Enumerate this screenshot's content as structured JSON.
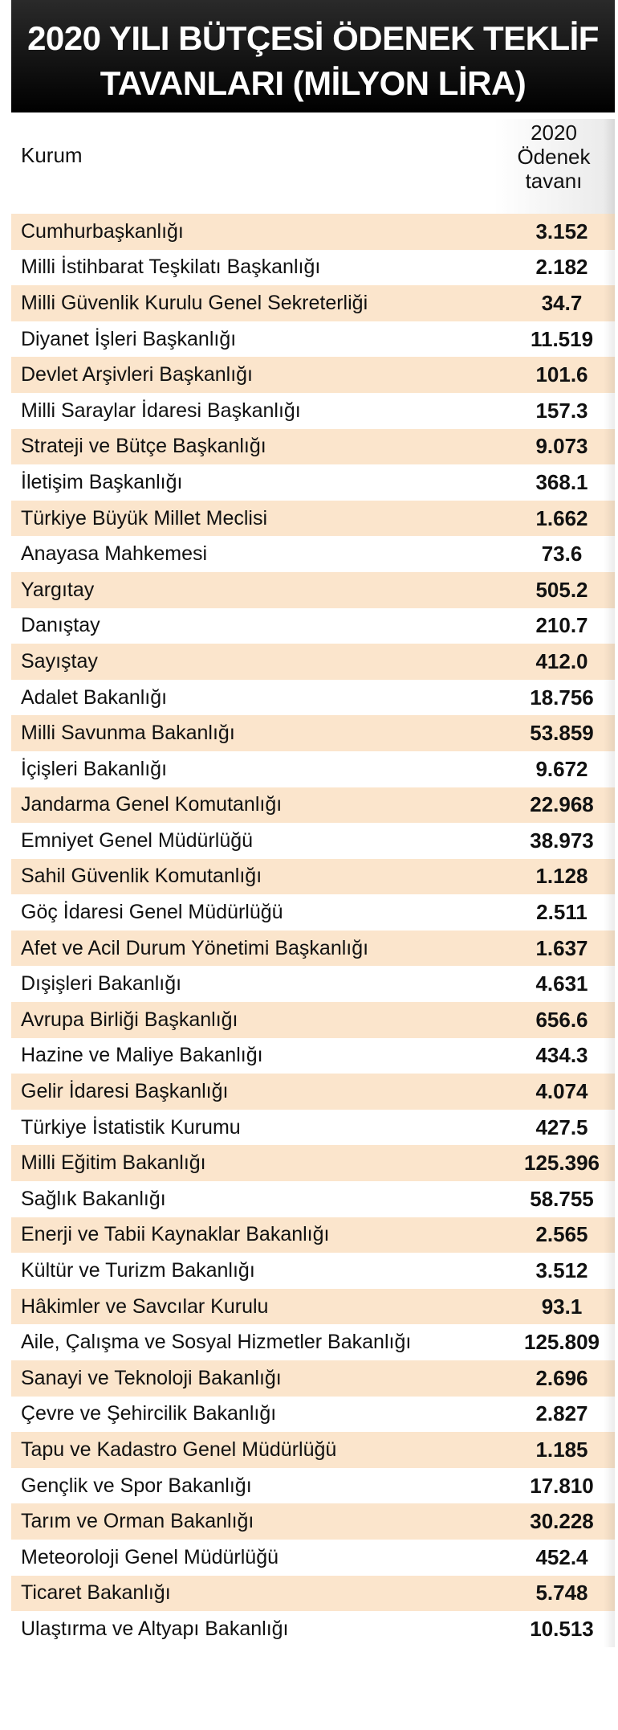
{
  "title": {
    "line1": "2020 YILI BÜTÇESİ ÖDENEK TEKLİF",
    "line2": "TAVANLARI (MİLYON LİRA)"
  },
  "columns": {
    "kurum": "Kurum",
    "value_line1": "2020",
    "value_line2": "Ödenek",
    "value_line3": "tavanı"
  },
  "colors": {
    "header_bg": "#000000",
    "stripe": "#fbe5cc"
  },
  "rows": [
    {
      "name": "Cumhurbaşkanlığı",
      "value": "3.152"
    },
    {
      "name": "Milli İstihbarat Teşkilatı Başkanlığı",
      "value": "2.182"
    },
    {
      "name": "Milli Güvenlik Kurulu Genel Sekreterliği",
      "value": "34.7"
    },
    {
      "name": "Diyanet İşleri Başkanlığı",
      "value": "11.519"
    },
    {
      "name": "Devlet Arşivleri Başkanlığı",
      "value": "101.6"
    },
    {
      "name": "Milli Saraylar İdaresi Başkanlığı",
      "value": "157.3"
    },
    {
      "name": "Strateji ve Bütçe Başkanlığı",
      "value": "9.073"
    },
    {
      "name": "İletişim Başkanlığı",
      "value": "368.1"
    },
    {
      "name": "Türkiye Büyük Millet Meclisi",
      "value": "1.662"
    },
    {
      "name": "Anayasa Mahkemesi",
      "value": "73.6"
    },
    {
      "name": "Yargıtay",
      "value": "505.2"
    },
    {
      "name": "Danıştay",
      "value": "210.7"
    },
    {
      "name": "Sayıştay",
      "value": "412.0"
    },
    {
      "name": "Adalet Bakanlığı",
      "value": "18.756"
    },
    {
      "name": "Milli Savunma Bakanlığı",
      "value": "53.859"
    },
    {
      "name": "İçişleri Bakanlığı",
      "value": "9.672"
    },
    {
      "name": "Jandarma Genel Komutanlığı",
      "value": "22.968"
    },
    {
      "name": "Emniyet Genel Müdürlüğü",
      "value": "38.973"
    },
    {
      "name": "Sahil Güvenlik Komutanlığı",
      "value": "1.128"
    },
    {
      "name": "Göç İdaresi Genel Müdürlüğü",
      "value": "2.511"
    },
    {
      "name": "Afet ve Acil Durum Yönetimi Başkanlığı",
      "value": "1.637"
    },
    {
      "name": "Dışişleri Bakanlığı",
      "value": "4.631"
    },
    {
      "name": "Avrupa Birliği Başkanlığı",
      "value": "656.6"
    },
    {
      "name": "Hazine ve Maliye Bakanlığı",
      "value": "434.3"
    },
    {
      "name": "Gelir İdaresi Başkanlığı",
      "value": "4.074"
    },
    {
      "name": "Türkiye İstatistik Kurumu",
      "value": "427.5"
    },
    {
      "name": "Milli Eğitim Bakanlığı",
      "value": "125.396"
    },
    {
      "name": "Sağlık Bakanlığı",
      "value": "58.755"
    },
    {
      "name": "Enerji ve Tabii Kaynaklar Bakanlığı",
      "value": "2.565"
    },
    {
      "name": "Kültür ve Turizm Bakanlığı",
      "value": "3.512"
    },
    {
      "name": "Hâkimler ve Savcılar Kurulu",
      "value": "93.1"
    },
    {
      "name": "Aile, Çalışma ve Sosyal Hizmetler Bakanlığı",
      "value": "125.809"
    },
    {
      "name": "Sanayi ve Teknoloji Bakanlığı",
      "value": "2.696"
    },
    {
      "name": "Çevre ve Şehircilik Bakanlığı",
      "value": "2.827"
    },
    {
      "name": "Tapu ve Kadastro Genel Müdürlüğü",
      "value": "1.185"
    },
    {
      "name": "Gençlik ve Spor Bakanlığı",
      "value": "17.810"
    },
    {
      "name": "Tarım ve Orman Bakanlığı",
      "value": "30.228"
    },
    {
      "name": "Meteoroloji Genel Müdürlüğü",
      "value": "452.4"
    },
    {
      "name": "Ticaret Bakanlığı",
      "value": "5.748"
    },
    {
      "name": "Ulaştırma ve Altyapı Bakanlığı",
      "value": "10.513"
    }
  ]
}
